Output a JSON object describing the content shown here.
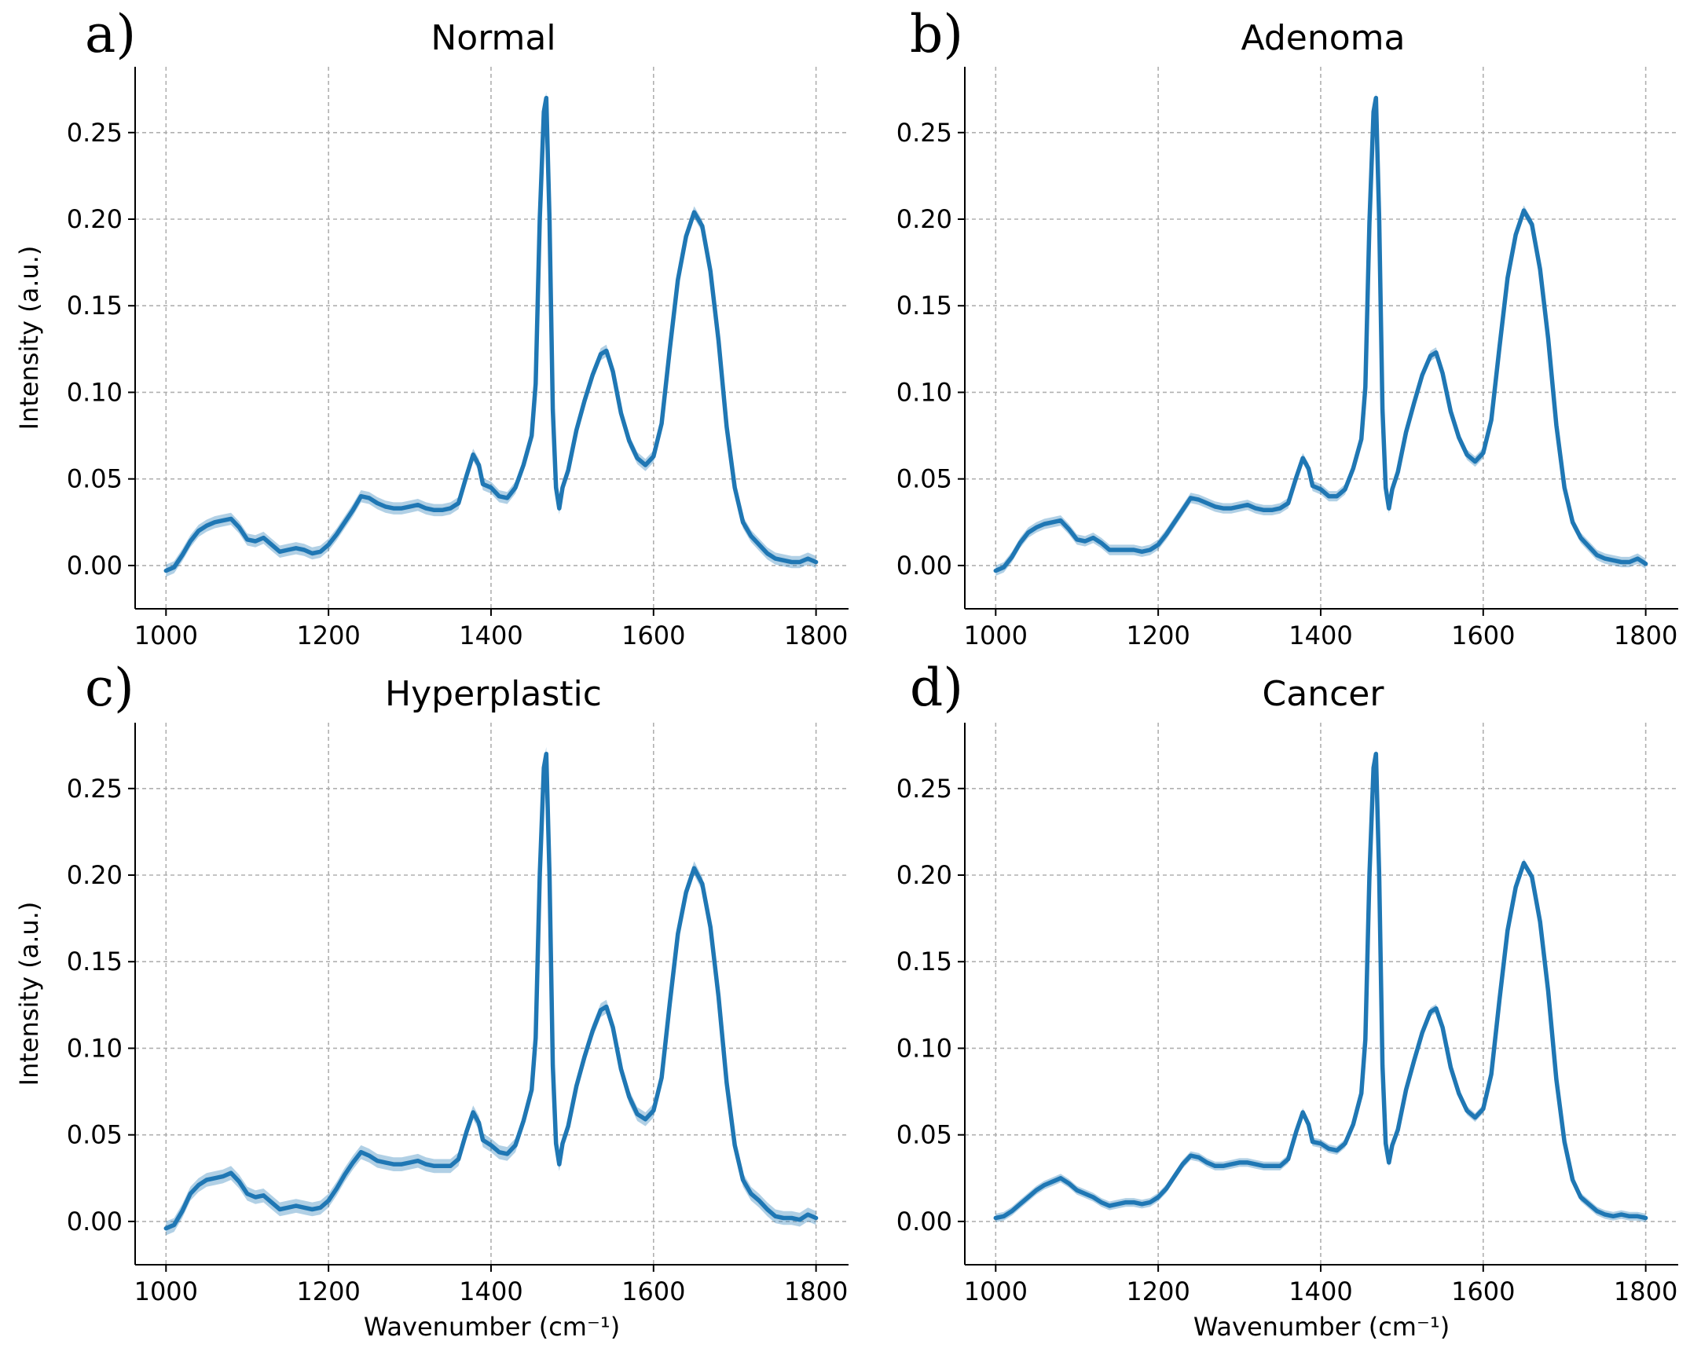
{
  "colors": {
    "series": "#1f77b4",
    "grid": "#b0b0b0",
    "axis": "#000000"
  },
  "chart_data": [
    {
      "type": "line",
      "panel_letter": "a)",
      "title": "Normal",
      "ylabel": "Intensity (a.u.)",
      "xlabel": "",
      "xlim": [
        962,
        1840
      ],
      "ylim": [
        -0.025,
        0.288
      ],
      "xticks": [
        1000,
        1200,
        1400,
        1600,
        1800
      ],
      "yticks": [
        "0.00",
        "0.05",
        "0.10",
        "0.15",
        "0.20",
        "0.25"
      ],
      "grid": true,
      "band": 0.0035,
      "series": [
        {
          "x": [
            1000,
            1010,
            1020,
            1030,
            1040,
            1050,
            1060,
            1070,
            1080,
            1090,
            1100,
            1110,
            1120,
            1130,
            1140,
            1150,
            1160,
            1170,
            1180,
            1190,
            1200,
            1210,
            1220,
            1230,
            1240,
            1250,
            1260,
            1270,
            1280,
            1290,
            1300,
            1310,
            1320,
            1330,
            1340,
            1350,
            1360,
            1370,
            1378,
            1385,
            1390,
            1400,
            1410,
            1420,
            1430,
            1440,
            1450,
            1455,
            1460,
            1465,
            1468,
            1472,
            1476,
            1480,
            1484,
            1488,
            1495,
            1505,
            1515,
            1525,
            1535,
            1542,
            1550,
            1560,
            1570,
            1580,
            1590,
            1600,
            1610,
            1620,
            1630,
            1640,
            1650,
            1660,
            1670,
            1680,
            1690,
            1700,
            1710,
            1720,
            1730,
            1740,
            1750,
            1760,
            1770,
            1780,
            1790,
            1800
          ],
          "y": [
            -0.003,
            -0.001,
            0.006,
            0.014,
            0.02,
            0.023,
            0.025,
            0.026,
            0.027,
            0.022,
            0.015,
            0.014,
            0.016,
            0.012,
            0.008,
            0.009,
            0.01,
            0.009,
            0.007,
            0.008,
            0.012,
            0.018,
            0.025,
            0.032,
            0.04,
            0.039,
            0.036,
            0.034,
            0.033,
            0.033,
            0.034,
            0.035,
            0.033,
            0.032,
            0.032,
            0.033,
            0.036,
            0.052,
            0.064,
            0.058,
            0.047,
            0.045,
            0.04,
            0.039,
            0.045,
            0.058,
            0.075,
            0.105,
            0.2,
            0.262,
            0.27,
            0.2,
            0.09,
            0.045,
            0.033,
            0.045,
            0.055,
            0.078,
            0.095,
            0.11,
            0.122,
            0.124,
            0.112,
            0.088,
            0.072,
            0.062,
            0.058,
            0.063,
            0.082,
            0.125,
            0.165,
            0.19,
            0.204,
            0.196,
            0.17,
            0.13,
            0.08,
            0.045,
            0.025,
            0.017,
            0.012,
            0.007,
            0.004,
            0.003,
            0.002,
            0.002,
            0.004,
            0.002
          ]
        }
      ]
    },
    {
      "type": "line",
      "panel_letter": "b)",
      "title": "Adenoma",
      "ylabel": "",
      "xlabel": "",
      "xlim": [
        962,
        1840
      ],
      "ylim": [
        -0.025,
        0.288
      ],
      "xticks": [
        1000,
        1200,
        1400,
        1600,
        1800
      ],
      "yticks": [
        "0.00",
        "0.05",
        "0.10",
        "0.15",
        "0.20",
        "0.25"
      ],
      "grid": true,
      "band": 0.003,
      "series": [
        {
          "x": [
            1000,
            1010,
            1020,
            1030,
            1040,
            1050,
            1060,
            1070,
            1080,
            1090,
            1100,
            1110,
            1120,
            1130,
            1140,
            1150,
            1160,
            1170,
            1180,
            1190,
            1200,
            1210,
            1220,
            1230,
            1240,
            1250,
            1260,
            1270,
            1280,
            1290,
            1300,
            1310,
            1320,
            1330,
            1340,
            1350,
            1360,
            1370,
            1378,
            1385,
            1390,
            1400,
            1410,
            1420,
            1430,
            1440,
            1450,
            1455,
            1460,
            1465,
            1468,
            1472,
            1476,
            1480,
            1484,
            1488,
            1495,
            1505,
            1515,
            1525,
            1535,
            1542,
            1550,
            1560,
            1570,
            1580,
            1590,
            1600,
            1610,
            1620,
            1630,
            1640,
            1650,
            1660,
            1670,
            1680,
            1690,
            1700,
            1710,
            1720,
            1730,
            1740,
            1750,
            1760,
            1770,
            1780,
            1790,
            1800
          ],
          "y": [
            -0.003,
            -0.001,
            0.005,
            0.013,
            0.019,
            0.022,
            0.024,
            0.025,
            0.026,
            0.021,
            0.015,
            0.014,
            0.016,
            0.013,
            0.009,
            0.009,
            0.009,
            0.009,
            0.008,
            0.009,
            0.012,
            0.018,
            0.025,
            0.032,
            0.039,
            0.038,
            0.036,
            0.034,
            0.033,
            0.033,
            0.034,
            0.035,
            0.033,
            0.032,
            0.032,
            0.033,
            0.036,
            0.051,
            0.062,
            0.056,
            0.046,
            0.044,
            0.04,
            0.04,
            0.044,
            0.056,
            0.073,
            0.103,
            0.198,
            0.262,
            0.27,
            0.2,
            0.09,
            0.045,
            0.033,
            0.044,
            0.054,
            0.077,
            0.094,
            0.11,
            0.121,
            0.123,
            0.111,
            0.089,
            0.074,
            0.064,
            0.06,
            0.065,
            0.084,
            0.126,
            0.166,
            0.191,
            0.205,
            0.197,
            0.171,
            0.131,
            0.081,
            0.045,
            0.025,
            0.016,
            0.011,
            0.006,
            0.004,
            0.003,
            0.002,
            0.002,
            0.004,
            0.001
          ]
        }
      ]
    },
    {
      "type": "line",
      "panel_letter": "c)",
      "title": "Hyperplastic",
      "ylabel": "Intensity (a.u.)",
      "xlabel": "Wavenumber (cm⁻¹)",
      "xlim": [
        962,
        1840
      ],
      "ylim": [
        -0.025,
        0.288
      ],
      "xticks": [
        1000,
        1200,
        1400,
        1600,
        1800
      ],
      "yticks": [
        "0.00",
        "0.05",
        "0.10",
        "0.15",
        "0.20",
        "0.25"
      ],
      "grid": true,
      "band": 0.004,
      "series": [
        {
          "x": [
            1000,
            1010,
            1020,
            1030,
            1040,
            1050,
            1060,
            1070,
            1080,
            1090,
            1100,
            1110,
            1120,
            1130,
            1140,
            1150,
            1160,
            1170,
            1180,
            1190,
            1200,
            1210,
            1220,
            1230,
            1240,
            1250,
            1260,
            1270,
            1280,
            1290,
            1300,
            1310,
            1320,
            1330,
            1340,
            1350,
            1360,
            1370,
            1378,
            1385,
            1390,
            1400,
            1410,
            1420,
            1430,
            1440,
            1450,
            1455,
            1460,
            1465,
            1468,
            1472,
            1476,
            1480,
            1484,
            1488,
            1495,
            1505,
            1515,
            1525,
            1535,
            1542,
            1550,
            1560,
            1570,
            1580,
            1590,
            1600,
            1610,
            1620,
            1630,
            1640,
            1650,
            1660,
            1670,
            1680,
            1690,
            1700,
            1710,
            1720,
            1730,
            1740,
            1750,
            1760,
            1770,
            1780,
            1790,
            1800
          ],
          "y": [
            -0.004,
            -0.002,
            0.006,
            0.016,
            0.021,
            0.024,
            0.025,
            0.026,
            0.028,
            0.023,
            0.016,
            0.014,
            0.015,
            0.011,
            0.007,
            0.008,
            0.009,
            0.008,
            0.007,
            0.008,
            0.012,
            0.019,
            0.027,
            0.034,
            0.04,
            0.038,
            0.035,
            0.034,
            0.033,
            0.033,
            0.034,
            0.035,
            0.033,
            0.032,
            0.032,
            0.032,
            0.036,
            0.052,
            0.063,
            0.057,
            0.047,
            0.044,
            0.04,
            0.039,
            0.044,
            0.058,
            0.076,
            0.106,
            0.2,
            0.262,
            0.27,
            0.2,
            0.09,
            0.045,
            0.033,
            0.045,
            0.055,
            0.078,
            0.095,
            0.11,
            0.122,
            0.124,
            0.112,
            0.088,
            0.072,
            0.062,
            0.059,
            0.064,
            0.083,
            0.126,
            0.166,
            0.19,
            0.204,
            0.195,
            0.17,
            0.13,
            0.08,
            0.044,
            0.024,
            0.016,
            0.012,
            0.007,
            0.003,
            0.002,
            0.002,
            0.001,
            0.004,
            0.002
          ]
        }
      ]
    },
    {
      "type": "line",
      "panel_letter": "d)",
      "title": "Cancer",
      "ylabel": "",
      "xlabel": "Wavenumber (cm⁻¹)",
      "xlim": [
        962,
        1840
      ],
      "ylim": [
        -0.025,
        0.288
      ],
      "xticks": [
        1000,
        1200,
        1400,
        1600,
        1800
      ],
      "yticks": [
        "0.00",
        "0.05",
        "0.10",
        "0.15",
        "0.20",
        "0.25"
      ],
      "grid": true,
      "band": 0.0025,
      "series": [
        {
          "x": [
            1000,
            1010,
            1020,
            1030,
            1040,
            1050,
            1060,
            1070,
            1080,
            1090,
            1100,
            1110,
            1120,
            1130,
            1140,
            1150,
            1160,
            1170,
            1180,
            1190,
            1200,
            1210,
            1220,
            1230,
            1240,
            1250,
            1260,
            1270,
            1280,
            1290,
            1300,
            1310,
            1320,
            1330,
            1340,
            1350,
            1360,
            1370,
            1378,
            1385,
            1390,
            1400,
            1410,
            1420,
            1430,
            1440,
            1450,
            1455,
            1460,
            1465,
            1468,
            1472,
            1476,
            1480,
            1484,
            1488,
            1495,
            1505,
            1515,
            1525,
            1535,
            1542,
            1550,
            1560,
            1570,
            1580,
            1590,
            1600,
            1610,
            1620,
            1630,
            1640,
            1650,
            1660,
            1670,
            1680,
            1690,
            1700,
            1710,
            1720,
            1730,
            1740,
            1750,
            1760,
            1770,
            1780,
            1790,
            1800
          ],
          "y": [
            0.002,
            0.003,
            0.006,
            0.01,
            0.014,
            0.018,
            0.021,
            0.023,
            0.025,
            0.022,
            0.018,
            0.016,
            0.014,
            0.011,
            0.009,
            0.01,
            0.011,
            0.011,
            0.01,
            0.011,
            0.014,
            0.019,
            0.026,
            0.033,
            0.038,
            0.037,
            0.034,
            0.032,
            0.032,
            0.033,
            0.034,
            0.034,
            0.033,
            0.032,
            0.032,
            0.032,
            0.036,
            0.052,
            0.063,
            0.056,
            0.046,
            0.045,
            0.042,
            0.041,
            0.045,
            0.056,
            0.074,
            0.105,
            0.2,
            0.262,
            0.27,
            0.2,
            0.09,
            0.045,
            0.034,
            0.044,
            0.053,
            0.076,
            0.093,
            0.109,
            0.121,
            0.123,
            0.112,
            0.089,
            0.074,
            0.064,
            0.06,
            0.065,
            0.085,
            0.128,
            0.168,
            0.193,
            0.207,
            0.199,
            0.173,
            0.133,
            0.082,
            0.046,
            0.024,
            0.014,
            0.01,
            0.006,
            0.004,
            0.003,
            0.004,
            0.003,
            0.003,
            0.002
          ]
        }
      ]
    }
  ]
}
